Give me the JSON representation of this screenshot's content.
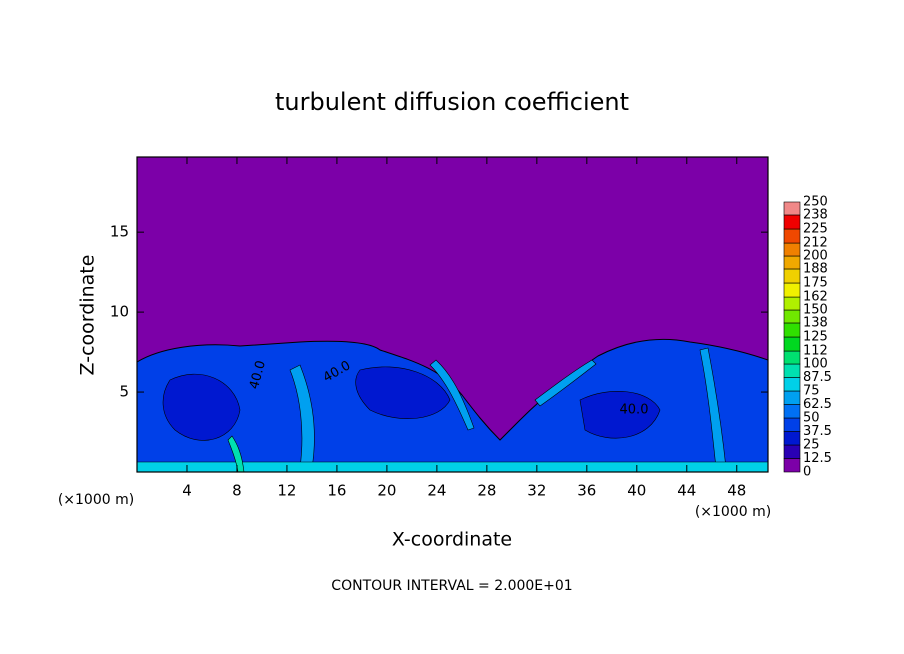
{
  "chart_data": {
    "type": "contour",
    "title": "turbulent diffusion coefficient",
    "xlabel": "X-coordinate",
    "ylabel": "Z-coordinate",
    "x_unit": "(×1000 m)",
    "y_unit": "(×1000 m)",
    "xlim": [
      0,
      50.5
    ],
    "ylim": [
      0,
      19.7
    ],
    "xticks": [
      4,
      8,
      12,
      16,
      20,
      24,
      28,
      32,
      36,
      40,
      44,
      48
    ],
    "yticks": [
      5,
      10,
      15
    ],
    "colorbar": {
      "levels": [
        0,
        12.5,
        25,
        37.5,
        50,
        62.5,
        75,
        87.5,
        100,
        112,
        125,
        138,
        150,
        162,
        175,
        188,
        200,
        212,
        225,
        238,
        250
      ],
      "colors": [
        "#7c00a8",
        "#2a00b4",
        "#0018d0",
        "#0040e8",
        "#0070f4",
        "#00a0f0",
        "#00d0e8",
        "#00e0b0",
        "#00e070",
        "#00d820",
        "#30e000",
        "#70e800",
        "#b0f000",
        "#f0f000",
        "#f0d000",
        "#f0a800",
        "#f08000",
        "#f04800",
        "#f00000",
        "#f08888"
      ]
    },
    "contour_labels": [
      {
        "value": 40,
        "label": "40.0"
      },
      {
        "value": 40,
        "label": "40.0"
      },
      {
        "value": 40,
        "label": "40.0"
      }
    ],
    "footer": "CONTOUR INTERVAL = 2.000E+01"
  }
}
